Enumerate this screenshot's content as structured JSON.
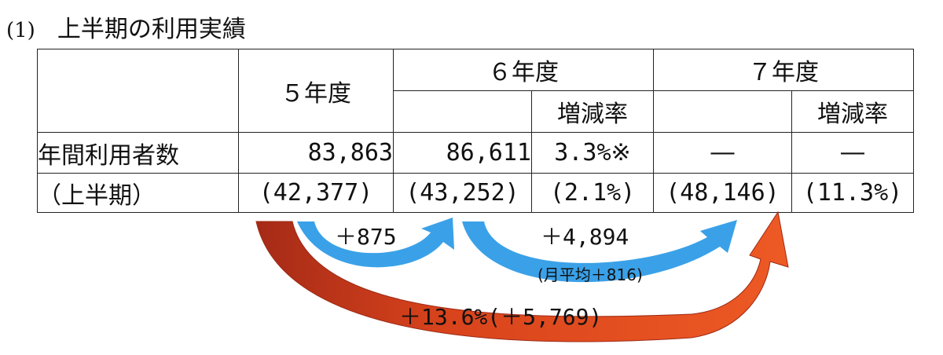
{
  "heading": {
    "number": "(1)",
    "title": "上半期の利用実績"
  },
  "table": {
    "col_fy5": "５年度",
    "col_fy6": "６年度",
    "col_fy7": "７年度",
    "rate_fy6": "増減率",
    "rate_fy7": "増減率",
    "row_annual": {
      "label": "年間利用者数",
      "fy5": "83,863",
      "fy6": "86,611",
      "fy6_rate": "3.3%※",
      "fy7": "―",
      "fy7_rate": "―"
    },
    "row_half": {
      "label": "（上半期）",
      "fy5": "(42,377)",
      "fy6": "(43,252)",
      "fy6_rate": "(2.1%)",
      "fy7": "(48,146)",
      "fy7_rate": "(11.3%)"
    }
  },
  "arrows": {
    "fy5_to_fy6": "＋875",
    "fy6_to_fy7": "＋4,894",
    "monthly_avg": "(月平均＋816)",
    "fy5_to_fy7": "＋13.6%(＋5,769)",
    "colors": {
      "blue": "#3aa1e8",
      "orange": "#e8501e",
      "orange_dark": "#b8321a"
    }
  }
}
